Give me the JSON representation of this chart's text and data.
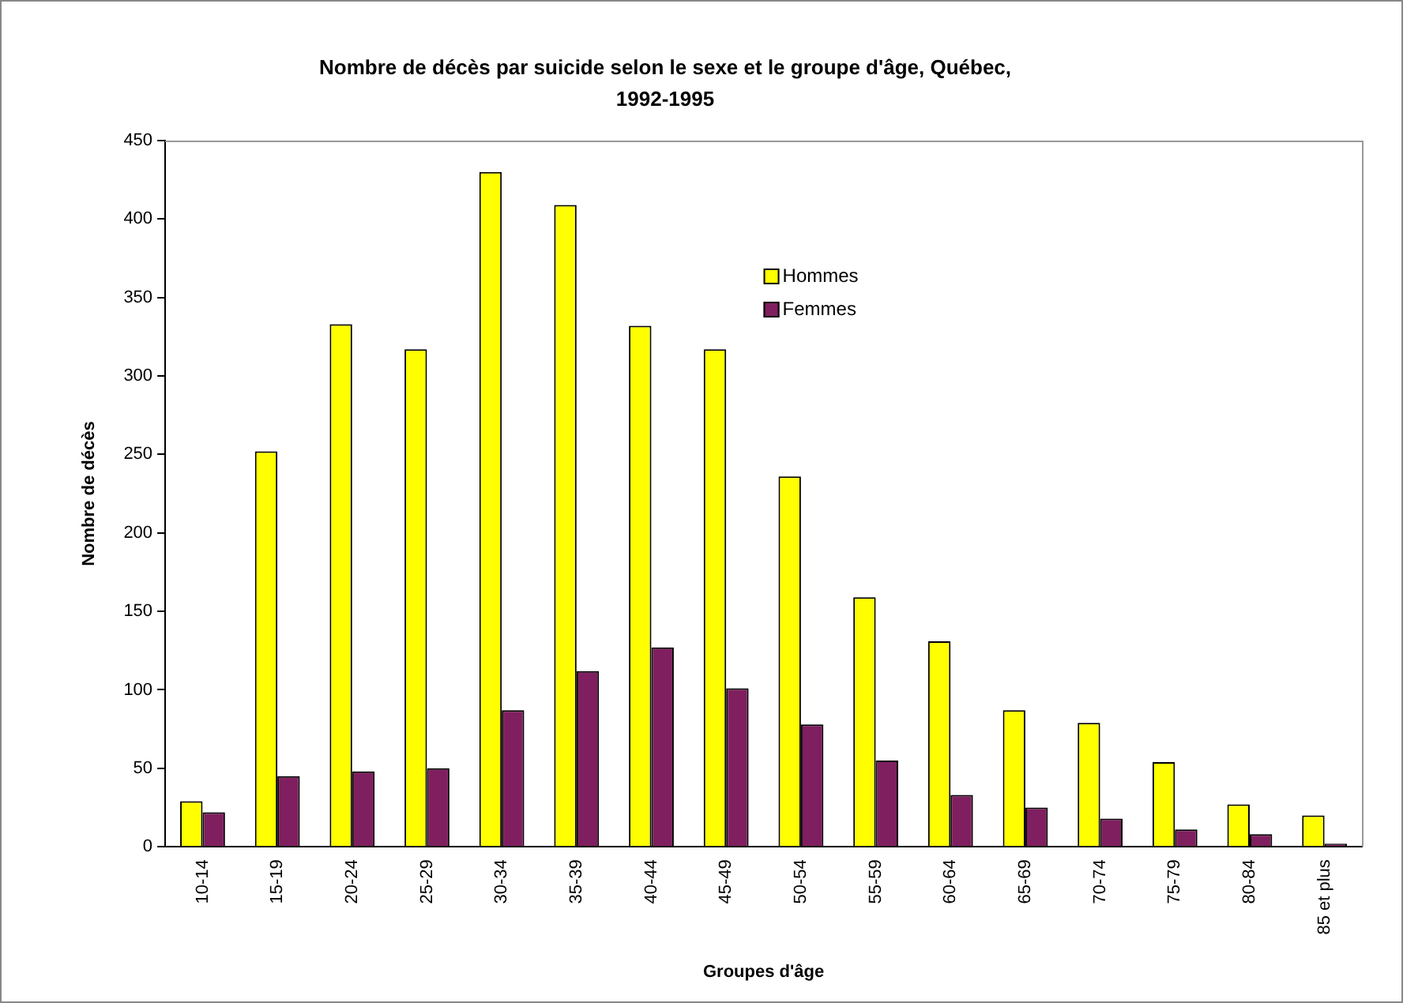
{
  "chart_data": {
    "type": "bar",
    "title": "Nombre de décès par suicide selon le sexe et le groupe d'âge, Québec, 1992-1995",
    "xlabel": "Groupes d'âge",
    "ylabel": "Nombre de décès",
    "categories": [
      "10-14",
      "15-19",
      "20-24",
      "25-29",
      "30-34",
      "35-39",
      "40-44",
      "45-49",
      "50-54",
      "55-59",
      "60-64",
      "65-69",
      "70-74",
      "75-79",
      "80-84",
      "85 et plus"
    ],
    "series": [
      {
        "name": "Hommes",
        "color": "#ffff00",
        "values": [
          29,
          252,
          333,
          317,
          430,
          409,
          332,
          317,
          236,
          159,
          131,
          87,
          79,
          54,
          27,
          20
        ]
      },
      {
        "name": "Femmes",
        "color": "#7f1f5f",
        "values": [
          22,
          45,
          48,
          50,
          87,
          112,
          127,
          101,
          78,
          55,
          33,
          25,
          18,
          11,
          8,
          2
        ]
      }
    ],
    "ylim": [
      0,
      450
    ],
    "yticks": [
      0,
      50,
      100,
      150,
      200,
      250,
      300,
      350,
      400,
      450
    ],
    "grid": false,
    "legend": "top"
  }
}
